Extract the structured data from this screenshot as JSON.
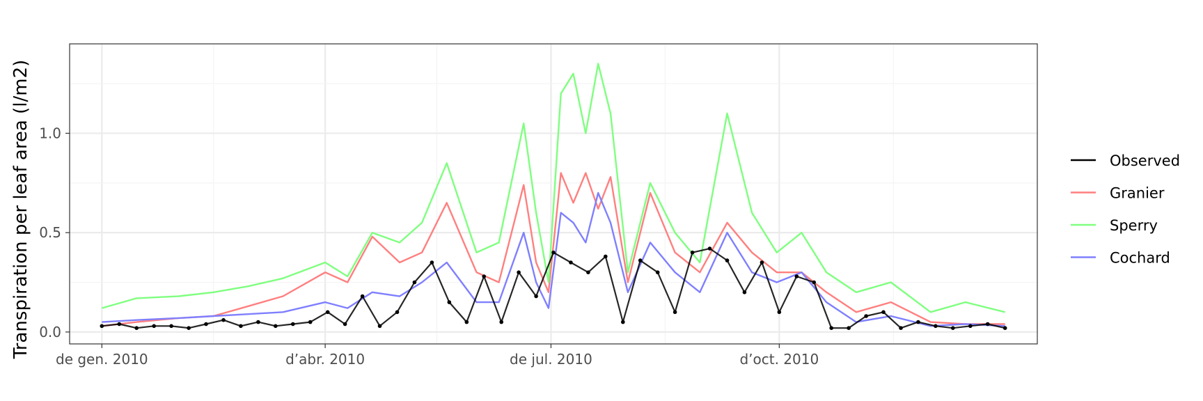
{
  "chart_data": {
    "type": "line",
    "title": "",
    "xlabel": "",
    "ylabel": "Transpiration per leaf area (l/m2)",
    "x_start": "2010-01-01",
    "x_end": "2010-12-31",
    "xlim": [
      "2009-12-19",
      "2011-01-13"
    ],
    "ylim": [
      -0.06,
      1.45
    ],
    "grid": true,
    "legend_position": "right",
    "x_ticks": [
      {
        "date": "2010-01-01",
        "label": "de gen. 2010"
      },
      {
        "date": "2010-04-01",
        "label": "d’abr. 2010"
      },
      {
        "date": "2010-07-01",
        "label": "de jul. 2010"
      },
      {
        "date": "2010-10-01",
        "label": "d’oct. 2010"
      }
    ],
    "y_ticks": [
      {
        "value": 0.0,
        "label": "0.0"
      },
      {
        "value": 0.5,
        "label": "0.5"
      },
      {
        "value": 1.0,
        "label": "1.0"
      }
    ],
    "legend": [
      "Observed",
      "Granier",
      "Sperry",
      "Cochard"
    ],
    "series": [
      {
        "name": "Observed",
        "color": "#000000",
        "markers": true,
        "points": [
          [
            "2010-01-01",
            0.03
          ],
          [
            "2010-01-08",
            0.04
          ],
          [
            "2010-01-15",
            0.02
          ],
          [
            "2010-01-22",
            0.03
          ],
          [
            "2010-01-29",
            0.03
          ],
          [
            "2010-02-05",
            0.02
          ],
          [
            "2010-02-12",
            0.04
          ],
          [
            "2010-02-19",
            0.06
          ],
          [
            "2010-02-26",
            0.03
          ],
          [
            "2010-03-05",
            0.05
          ],
          [
            "2010-03-12",
            0.03
          ],
          [
            "2010-03-19",
            0.04
          ],
          [
            "2010-03-26",
            0.05
          ],
          [
            "2010-04-02",
            0.1
          ],
          [
            "2010-04-09",
            0.04
          ],
          [
            "2010-04-16",
            0.18
          ],
          [
            "2010-04-23",
            0.03
          ],
          [
            "2010-04-30",
            0.1
          ],
          [
            "2010-05-07",
            0.25
          ],
          [
            "2010-05-14",
            0.35
          ],
          [
            "2010-05-21",
            0.15
          ],
          [
            "2010-05-28",
            0.05
          ],
          [
            "2010-06-04",
            0.28
          ],
          [
            "2010-06-11",
            0.05
          ],
          [
            "2010-06-18",
            0.3
          ],
          [
            "2010-06-25",
            0.18
          ],
          [
            "2010-07-02",
            0.4
          ],
          [
            "2010-07-09",
            0.35
          ],
          [
            "2010-07-16",
            0.3
          ],
          [
            "2010-07-23",
            0.38
          ],
          [
            "2010-07-30",
            0.05
          ],
          [
            "2010-08-06",
            0.36
          ],
          [
            "2010-08-13",
            0.3
          ],
          [
            "2010-08-20",
            0.1
          ],
          [
            "2010-08-27",
            0.4
          ],
          [
            "2010-09-03",
            0.42
          ],
          [
            "2010-09-10",
            0.36
          ],
          [
            "2010-09-17",
            0.2
          ],
          [
            "2010-09-24",
            0.35
          ],
          [
            "2010-10-01",
            0.1
          ],
          [
            "2010-10-08",
            0.28
          ],
          [
            "2010-10-15",
            0.25
          ],
          [
            "2010-10-22",
            0.02
          ],
          [
            "2010-10-29",
            0.02
          ],
          [
            "2010-11-05",
            0.08
          ],
          [
            "2010-11-12",
            0.1
          ],
          [
            "2010-11-19",
            0.02
          ],
          [
            "2010-11-26",
            0.05
          ],
          [
            "2010-12-03",
            0.03
          ],
          [
            "2010-12-10",
            0.02
          ],
          [
            "2010-12-17",
            0.03
          ],
          [
            "2010-12-24",
            0.04
          ],
          [
            "2010-12-31",
            0.02
          ]
        ]
      },
      {
        "name": "Granier",
        "color": "#ff7f7f",
        "markers": false,
        "points": [
          [
            "2010-01-01",
            0.03
          ],
          [
            "2010-01-15",
            0.05
          ],
          [
            "2010-02-01",
            0.07
          ],
          [
            "2010-02-15",
            0.08
          ],
          [
            "2010-03-01",
            0.13
          ],
          [
            "2010-03-15",
            0.18
          ],
          [
            "2010-04-01",
            0.3
          ],
          [
            "2010-04-10",
            0.25
          ],
          [
            "2010-04-20",
            0.48
          ],
          [
            "2010-05-01",
            0.35
          ],
          [
            "2010-05-10",
            0.4
          ],
          [
            "2010-05-20",
            0.65
          ],
          [
            "2010-06-01",
            0.3
          ],
          [
            "2010-06-10",
            0.25
          ],
          [
            "2010-06-20",
            0.74
          ],
          [
            "2010-06-25",
            0.35
          ],
          [
            "2010-06-30",
            0.2
          ],
          [
            "2010-07-05",
            0.8
          ],
          [
            "2010-07-10",
            0.65
          ],
          [
            "2010-07-15",
            0.8
          ],
          [
            "2010-07-20",
            0.62
          ],
          [
            "2010-07-25",
            0.78
          ],
          [
            "2010-08-01",
            0.25
          ],
          [
            "2010-08-10",
            0.7
          ],
          [
            "2010-08-20",
            0.4
          ],
          [
            "2010-08-30",
            0.3
          ],
          [
            "2010-09-10",
            0.55
          ],
          [
            "2010-09-20",
            0.4
          ],
          [
            "2010-09-30",
            0.3
          ],
          [
            "2010-10-10",
            0.3
          ],
          [
            "2010-10-20",
            0.2
          ],
          [
            "2010-11-01",
            0.1
          ],
          [
            "2010-11-15",
            0.15
          ],
          [
            "2010-12-01",
            0.05
          ],
          [
            "2010-12-15",
            0.04
          ],
          [
            "2010-12-31",
            0.04
          ]
        ]
      },
      {
        "name": "Sperry",
        "color": "#7fff7f",
        "markers": false,
        "points": [
          [
            "2010-01-01",
            0.12
          ],
          [
            "2010-01-15",
            0.17
          ],
          [
            "2010-02-01",
            0.18
          ],
          [
            "2010-02-15",
            0.2
          ],
          [
            "2010-03-01",
            0.23
          ],
          [
            "2010-03-15",
            0.27
          ],
          [
            "2010-04-01",
            0.35
          ],
          [
            "2010-04-10",
            0.28
          ],
          [
            "2010-04-20",
            0.5
          ],
          [
            "2010-05-01",
            0.45
          ],
          [
            "2010-05-10",
            0.55
          ],
          [
            "2010-05-20",
            0.85
          ],
          [
            "2010-06-01",
            0.4
          ],
          [
            "2010-06-10",
            0.45
          ],
          [
            "2010-06-20",
            1.05
          ],
          [
            "2010-06-25",
            0.6
          ],
          [
            "2010-06-30",
            0.25
          ],
          [
            "2010-07-05",
            1.2
          ],
          [
            "2010-07-10",
            1.3
          ],
          [
            "2010-07-15",
            1.0
          ],
          [
            "2010-07-20",
            1.35
          ],
          [
            "2010-07-25",
            1.1
          ],
          [
            "2010-08-01",
            0.3
          ],
          [
            "2010-08-10",
            0.75
          ],
          [
            "2010-08-20",
            0.5
          ],
          [
            "2010-08-30",
            0.35
          ],
          [
            "2010-09-10",
            1.1
          ],
          [
            "2010-09-20",
            0.6
          ],
          [
            "2010-09-30",
            0.4
          ],
          [
            "2010-10-10",
            0.5
          ],
          [
            "2010-10-20",
            0.3
          ],
          [
            "2010-11-01",
            0.2
          ],
          [
            "2010-11-15",
            0.25
          ],
          [
            "2010-12-01",
            0.1
          ],
          [
            "2010-12-15",
            0.15
          ],
          [
            "2010-12-31",
            0.1
          ]
        ]
      },
      {
        "name": "Cochard",
        "color": "#7f7fff",
        "markers": false,
        "points": [
          [
            "2010-01-01",
            0.05
          ],
          [
            "2010-01-15",
            0.06
          ],
          [
            "2010-02-01",
            0.07
          ],
          [
            "2010-02-15",
            0.08
          ],
          [
            "2010-03-01",
            0.09
          ],
          [
            "2010-03-15",
            0.1
          ],
          [
            "2010-04-01",
            0.15
          ],
          [
            "2010-04-10",
            0.12
          ],
          [
            "2010-04-20",
            0.2
          ],
          [
            "2010-05-01",
            0.18
          ],
          [
            "2010-05-10",
            0.25
          ],
          [
            "2010-05-20",
            0.35
          ],
          [
            "2010-06-01",
            0.15
          ],
          [
            "2010-06-10",
            0.15
          ],
          [
            "2010-06-20",
            0.5
          ],
          [
            "2010-06-25",
            0.25
          ],
          [
            "2010-06-30",
            0.12
          ],
          [
            "2010-07-05",
            0.6
          ],
          [
            "2010-07-10",
            0.55
          ],
          [
            "2010-07-15",
            0.45
          ],
          [
            "2010-07-20",
            0.7
          ],
          [
            "2010-07-25",
            0.55
          ],
          [
            "2010-08-01",
            0.2
          ],
          [
            "2010-08-10",
            0.45
          ],
          [
            "2010-08-20",
            0.3
          ],
          [
            "2010-08-30",
            0.2
          ],
          [
            "2010-09-10",
            0.5
          ],
          [
            "2010-09-20",
            0.3
          ],
          [
            "2010-09-30",
            0.25
          ],
          [
            "2010-10-10",
            0.3
          ],
          [
            "2010-10-20",
            0.15
          ],
          [
            "2010-11-01",
            0.05
          ],
          [
            "2010-11-15",
            0.08
          ],
          [
            "2010-12-01",
            0.03
          ],
          [
            "2010-12-15",
            0.04
          ],
          [
            "2010-12-31",
            0.03
          ]
        ]
      }
    ]
  }
}
